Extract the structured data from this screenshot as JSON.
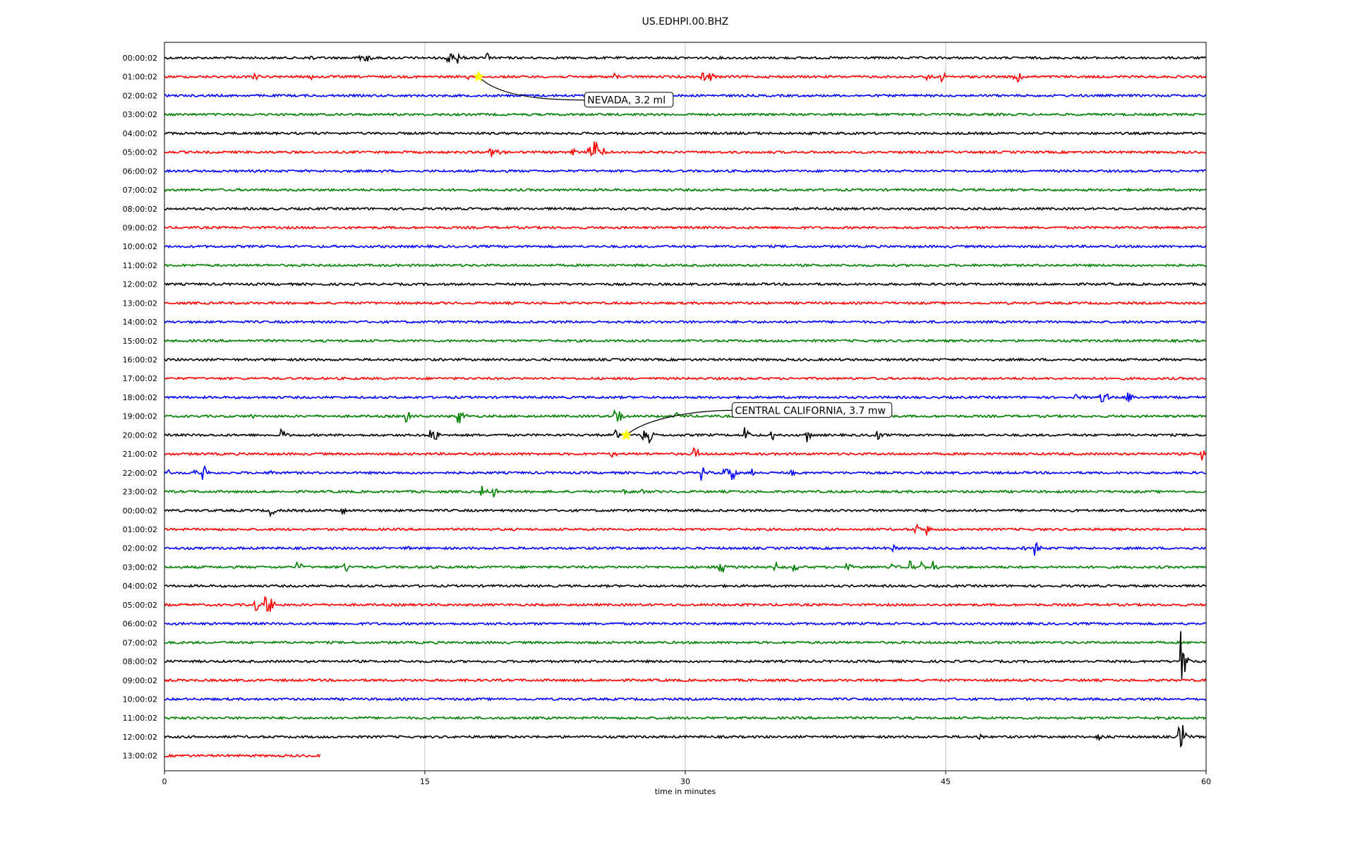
{
  "chart_data": {
    "type": "line",
    "title": "US.EDHPI.00.BHZ",
    "xlabel": "time in minutes",
    "ylabel": "",
    "xlim": [
      0,
      60
    ],
    "xticks": [
      "0",
      "15",
      "30",
      "45",
      "60"
    ],
    "grid": "vertical lines at 15, 30, 45",
    "colors": [
      "#000000",
      "#ff0000",
      "#0000ff",
      "#008000"
    ],
    "hour_labels": [
      "00:00:02",
      "01:00:02",
      "02:00:02",
      "03:00:02",
      "04:00:02",
      "05:00:02",
      "06:00:02",
      "07:00:02",
      "08:00:02",
      "09:00:02",
      "10:00:02",
      "11:00:02",
      "12:00:02",
      "13:00:02",
      "14:00:02",
      "15:00:02",
      "16:00:02",
      "17:00:02",
      "18:00:02",
      "19:00:02",
      "20:00:02",
      "21:00:02",
      "22:00:02",
      "23:00:02",
      "00:00:02",
      "01:00:02",
      "02:00:02",
      "03:00:02",
      "04:00:02",
      "05:00:02",
      "06:00:02",
      "07:00:02",
      "08:00:02",
      "09:00:02",
      "10:00:02",
      "11:00:02",
      "12:00:02",
      "13:00:02"
    ],
    "last_trace_end_minute": 9,
    "events": [
      {
        "row": 0,
        "minutes": [
          8.4,
          11.3,
          11.7,
          16.4,
          17,
          18.6
        ],
        "amps": [
          0.6,
          0.9,
          0.5,
          1.3,
          0.7,
          0.7
        ]
      },
      {
        "row": 1,
        "minutes": [
          5.2,
          8.5,
          17.5,
          26,
          31,
          31.5,
          44,
          44.8,
          49,
          49.2
        ],
        "amps": [
          0.4,
          0.3,
          0.4,
          0.5,
          0.7,
          0.6,
          0.5,
          0.7,
          1.3,
          0.8
        ]
      },
      {
        "row": 5,
        "minutes": [
          18.8,
          19.2,
          23.5,
          24.5,
          24.8,
          25.3
        ],
        "amps": [
          1.0,
          0.8,
          0.6,
          0.8,
          2.2,
          0.7
        ]
      },
      {
        "row": 18,
        "minutes": [
          52.5,
          54,
          54.3,
          55.5
        ],
        "amps": [
          0.5,
          0.8,
          0.5,
          1.2
        ]
      },
      {
        "row": 19,
        "minutes": [
          5,
          14,
          17,
          17.2,
          26,
          26.2,
          29.5
        ],
        "amps": [
          0.4,
          1.1,
          1.2,
          0.8,
          1.3,
          0.8,
          0.5
        ]
      },
      {
        "row": 20,
        "minutes": [
          6.8,
          15.3,
          15.6,
          26,
          27.6,
          28,
          33.5,
          35,
          37,
          41
        ],
        "amps": [
          1.0,
          0.8,
          0.9,
          0.9,
          1.4,
          1.0,
          1.0,
          1.2,
          1.0,
          1.2
        ]
      },
      {
        "row": 21,
        "minutes": [
          25.8,
          30.6,
          59.8
        ],
        "amps": [
          0.6,
          1.0,
          1.0
        ]
      },
      {
        "row": 22,
        "minutes": [
          0.2,
          1.8,
          2.3,
          6,
          31,
          32.3,
          32.8,
          33.8,
          36.2
        ],
        "amps": [
          0.5,
          0.6,
          0.9,
          0.8,
          1.0,
          1.2,
          1.1,
          0.7,
          0.6
        ]
      },
      {
        "row": 23,
        "minutes": [
          18.3,
          19,
          26.5,
          27.5
        ],
        "amps": [
          1.1,
          0.8,
          0.6,
          0.5
        ]
      },
      {
        "row": 24,
        "minutes": [
          6.2,
          10.3
        ],
        "amps": [
          0.6,
          0.6
        ]
      },
      {
        "row": 25,
        "minutes": [
          43.3,
          44
        ],
        "amps": [
          0.8,
          0.8
        ]
      },
      {
        "row": 26,
        "minutes": [
          14,
          42,
          49.5,
          50.2
        ],
        "amps": [
          0.3,
          0.6,
          0.6,
          1.1
        ]
      },
      {
        "row": 27,
        "minutes": [
          7.7,
          10.4,
          32,
          32.3,
          35.2,
          36.3,
          39.3,
          42,
          43,
          43.6,
          44.3
        ],
        "amps": [
          0.9,
          1.1,
          0.8,
          0.8,
          0.7,
          0.7,
          0.9,
          0.7,
          0.8,
          0.8,
          0.9
        ]
      },
      {
        "row": 29,
        "minutes": [
          5.3,
          5.9,
          6.2
        ],
        "amps": [
          0.8,
          1.8,
          0.7
        ]
      },
      {
        "row": 32,
        "minutes": [
          58.6
        ],
        "amps": [
          6.5
        ]
      },
      {
        "row": 36,
        "minutes": [
          47,
          53.8,
          58.5,
          58.6
        ],
        "amps": [
          0.4,
          0.6,
          1.5,
          2.5
        ]
      }
    ],
    "annotations": [
      {
        "label": "NEVADA, 3.2 ml",
        "row": 1,
        "minute": 18.1
      },
      {
        "label": "CENTRAL CALIFORNIA, 3.7 mw",
        "row": 20,
        "minute": 26.6
      }
    ]
  }
}
